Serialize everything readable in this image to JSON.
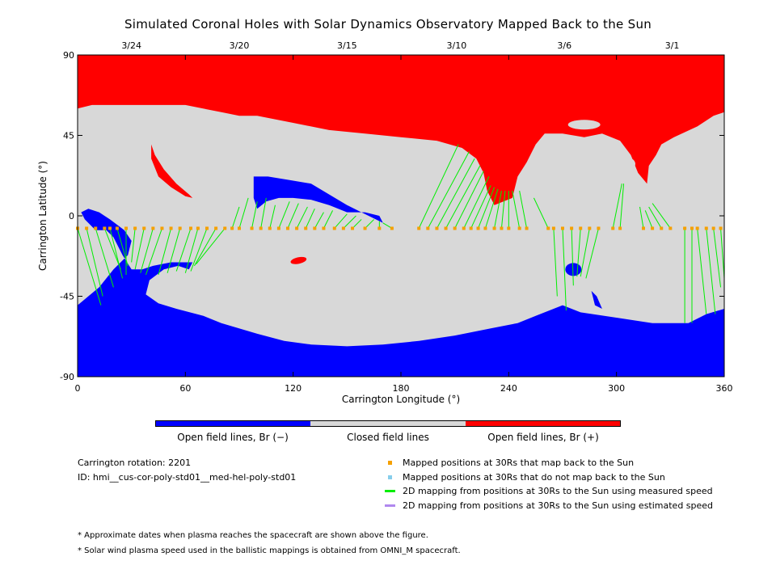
{
  "chart_data": {
    "type": "map",
    "title": "Simulated Coronal Holes with Solar Dynamics Observatory Mapped Back to the Sun",
    "xlabel": "Carrington Longitude (°)",
    "ylabel": "Carrington Latitude (°)",
    "xlim": [
      0,
      360
    ],
    "ylim": [
      -90,
      90
    ],
    "xticks": [
      "0",
      "60",
      "120",
      "180",
      "240",
      "300",
      "360"
    ],
    "yticks": [
      "90",
      "45",
      "0",
      "-45",
      "-90"
    ],
    "top_axis_dates": [
      {
        "label": "3/24",
        "lon": 30
      },
      {
        "label": "3/20",
        "lon": 90
      },
      {
        "label": "3/15",
        "lon": 150
      },
      {
        "label": "3/10",
        "lon": 211
      },
      {
        "label": "3/6",
        "lon": 271
      },
      {
        "label": "3/1",
        "lon": 331
      }
    ],
    "colors": {
      "open_negative": "#0000ff",
      "closed": "#d8d8d8",
      "open_positive": "#ff0000",
      "mapped_back": "#f5a000",
      "not_mapped": "#87ceeb",
      "measured_speed": "#00ee00",
      "estimated_speed": "#b088ee"
    },
    "colorbar": [
      {
        "label": "Open field lines, Br (−)",
        "color": "#0000ff"
      },
      {
        "label": "Closed field lines",
        "color": "#d8d8d8"
      },
      {
        "label": "Open field lines, Br (+)",
        "color": "#ff0000"
      }
    ],
    "spacecraft_lat": -7,
    "mappings": [
      {
        "lon": 0,
        "foot": [
          13,
          -50
        ]
      },
      {
        "lon": 5,
        "foot": [
          14,
          -45
        ]
      },
      {
        "lon": 10,
        "foot": [
          20,
          -40
        ]
      },
      {
        "lon": 15,
        "foot": [
          24,
          -30
        ]
      },
      {
        "lon": 18,
        "foot": [
          25,
          -35
        ]
      },
      {
        "lon": 22,
        "foot": [
          28,
          -28
        ]
      },
      {
        "lon": 27,
        "foot": [
          27,
          -33
        ]
      },
      {
        "lon": 32,
        "foot": [
          30,
          -26
        ]
      },
      {
        "lon": 37,
        "foot": [
          32,
          -30
        ]
      },
      {
        "lon": 42,
        "foot": [
          35,
          -32
        ]
      },
      {
        "lon": 47,
        "foot": [
          38,
          -33
        ]
      },
      {
        "lon": 52,
        "foot": [
          45,
          -33
        ]
      },
      {
        "lon": 57,
        "foot": [
          50,
          -32
        ]
      },
      {
        "lon": 63,
        "foot": [
          55,
          -31
        ]
      },
      {
        "lon": 67,
        "foot": [
          60,
          -32
        ]
      },
      {
        "lon": 72,
        "foot": [
          63,
          -31
        ]
      },
      {
        "lon": 77,
        "foot": [
          65,
          -28
        ]
      },
      {
        "lon": 82,
        "foot": [
          66,
          -27
        ]
      },
      {
        "lon": 86,
        "foot": [
          90,
          5
        ]
      },
      {
        "lon": 90,
        "foot": [
          95,
          10
        ]
      },
      {
        "lon": 97,
        "foot": [
          100,
          8
        ]
      },
      {
        "lon": 102,
        "foot": [
          105,
          10
        ]
      },
      {
        "lon": 107,
        "foot": [
          110,
          6
        ]
      },
      {
        "lon": 112,
        "foot": [
          118,
          8
        ]
      },
      {
        "lon": 117,
        "foot": [
          123,
          7
        ]
      },
      {
        "lon": 122,
        "foot": [
          128,
          5
        ]
      },
      {
        "lon": 127,
        "foot": [
          132,
          4
        ]
      },
      {
        "lon": 132,
        "foot": [
          137,
          2
        ]
      },
      {
        "lon": 137,
        "foot": [
          142,
          3
        ]
      },
      {
        "lon": 143,
        "foot": [
          150,
          1
        ]
      },
      {
        "lon": 148,
        "foot": [
          155,
          0
        ]
      },
      {
        "lon": 153,
        "foot": [
          158,
          -2
        ]
      },
      {
        "lon": 160,
        "foot": [
          165,
          -2
        ]
      },
      {
        "lon": 168,
        "foot": [
          168,
          -3
        ]
      },
      {
        "lon": 175,
        "foot": [
          170,
          -4
        ]
      },
      {
        "lon": 190,
        "foot": [
          212,
          40
        ]
      },
      {
        "lon": 195,
        "foot": [
          218,
          36
        ]
      },
      {
        "lon": 200,
        "foot": [
          221,
          32
        ]
      },
      {
        "lon": 205,
        "foot": [
          224,
          28
        ]
      },
      {
        "lon": 210,
        "foot": [
          226,
          25
        ]
      },
      {
        "lon": 215,
        "foot": [
          229,
          22
        ]
      },
      {
        "lon": 219,
        "foot": [
          230,
          17
        ]
      },
      {
        "lon": 223,
        "foot": [
          232,
          16
        ]
      },
      {
        "lon": 227,
        "foot": [
          234,
          15
        ]
      },
      {
        "lon": 232,
        "foot": [
          236,
          14
        ]
      },
      {
        "lon": 236,
        "foot": [
          238,
          14
        ]
      },
      {
        "lon": 240,
        "foot": [
          240,
          14
        ]
      },
      {
        "lon": 246,
        "foot": [
          242,
          14
        ]
      },
      {
        "lon": 250,
        "foot": [
          246,
          14
        ]
      },
      {
        "lon": 262,
        "foot": [
          254,
          10
        ]
      },
      {
        "lon": 265,
        "foot": [
          267,
          -45
        ]
      },
      {
        "lon": 270,
        "foot": [
          272,
          -53
        ]
      },
      {
        "lon": 275,
        "foot": [
          276,
          -39
        ]
      },
      {
        "lon": 280,
        "foot": [
          278,
          -34
        ]
      },
      {
        "lon": 285,
        "foot": [
          280,
          -34
        ]
      },
      {
        "lon": 290,
        "foot": [
          283,
          -35
        ]
      },
      {
        "lon": 298,
        "foot": [
          303,
          18
        ]
      },
      {
        "lon": 302,
        "foot": [
          304,
          18
        ]
      },
      {
        "lon": 315,
        "foot": [
          313,
          5
        ]
      },
      {
        "lon": 320,
        "foot": [
          316,
          3
        ]
      },
      {
        "lon": 325,
        "foot": [
          318,
          5
        ]
      },
      {
        "lon": 330,
        "foot": [
          320,
          7
        ]
      },
      {
        "lon": 338,
        "foot": [
          338,
          -60
        ]
      },
      {
        "lon": 342,
        "foot": [
          342,
          -60
        ]
      },
      {
        "lon": 345,
        "foot": [
          350,
          -55
        ]
      },
      {
        "lon": 350,
        "foot": [
          355,
          -55
        ]
      },
      {
        "lon": 354,
        "foot": [
          358,
          -40
        ]
      },
      {
        "lon": 358,
        "foot": [
          360,
          -35
        ]
      }
    ]
  },
  "info": {
    "rotation": "Carrington rotation: 2201",
    "id": "ID: hmi__cus-cor-poly-std01__med-hel-poly-std01"
  },
  "legend": {
    "mapped_back": "Mapped positions at 30Rs that map back to the Sun",
    "not_mapped": "Mapped positions at 30Rs that do not map back to the Sun",
    "measured": "2D mapping from positions at 30Rs to the Sun using measured speed",
    "estimated": "2D mapping from positions at 30Rs to the Sun using estimated speed"
  },
  "notes": {
    "note1": "* Approximate dates when plasma reaches the spacecraft are shown above the figure.",
    "note2": "* Solar wind plasma speed used in the ballistic mappings is obtained from OMNI_M spacecraft."
  }
}
